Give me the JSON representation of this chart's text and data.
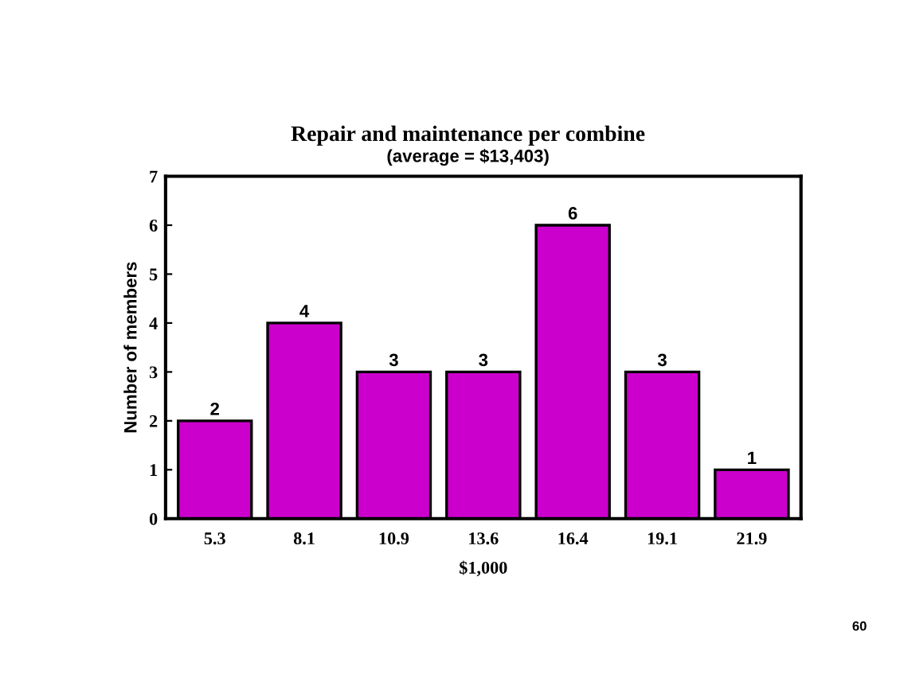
{
  "chart_data": {
    "type": "bar",
    "title": "Repair and maintenance per combine",
    "subtitle": "(average = $13,403)",
    "xlabel": "$1,000",
    "ylabel": "Number of members",
    "categories": [
      "5.3",
      "8.1",
      "10.9",
      "13.6",
      "16.4",
      "19.1",
      "21.9"
    ],
    "values": [
      2,
      4,
      3,
      3,
      6,
      3,
      1
    ],
    "color": "#cc00cc",
    "ylim": [
      0,
      7
    ],
    "yticks": [
      0,
      1,
      2,
      3,
      4,
      5,
      6,
      7
    ],
    "data_labels": true,
    "grid": false,
    "annotations": [
      "60"
    ]
  }
}
